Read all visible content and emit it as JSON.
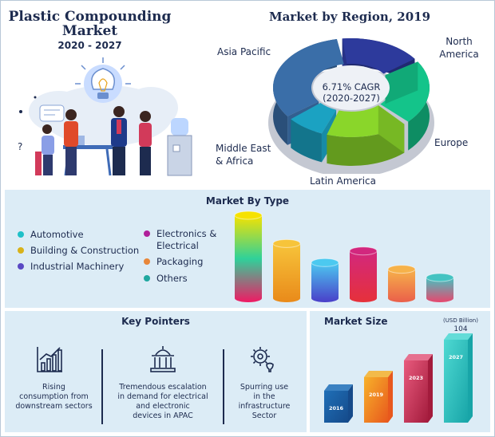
{
  "header": {
    "title_line1": "Plastic Compounding",
    "title_line2": "Market",
    "years": "2020 - 2027"
  },
  "region_chart": {
    "title": "Market by Region, 2019",
    "center_line1": "6.71% CAGR",
    "center_line2": "(2020-2027)",
    "labels": {
      "north_america": [
        "North",
        "America"
      ],
      "asia_pacific": "Asia Pacific",
      "europe": "Europe",
      "middle_east": [
        "Middle East",
        "& Africa"
      ],
      "latin_america": "Latin America"
    }
  },
  "type_chart": {
    "title": "Market By Type",
    "legend": [
      {
        "label": "Automotive",
        "color": "#1fc0c8"
      },
      {
        "label": "Building & Construction",
        "color": "#d8b21a"
      },
      {
        "label": "Industrial Machinery",
        "color": "#5a49c4"
      },
      {
        "label": "Electronics &",
        "label2": "Electrical",
        "color": "#b0209a"
      },
      {
        "label": "Packaging",
        "color": "#e8873a"
      },
      {
        "label": "Others",
        "color": "#1fa8a0"
      }
    ]
  },
  "key_pointers": {
    "title": "Key Pointers",
    "items": [
      {
        "icon": "growth-chart-icon",
        "lines": [
          "Rising",
          "consumption from",
          "downstream sectors"
        ]
      },
      {
        "icon": "government-building-icon",
        "lines": [
          "Tremendous escalation",
          "in demand for electrical",
          "and electronic",
          "devices in APAC"
        ]
      },
      {
        "icon": "gear-bulb-icon",
        "lines": [
          "Spurring use",
          "in the",
          "infrastructure",
          "Sector"
        ]
      }
    ]
  },
  "market_size": {
    "title": "Market Size",
    "unit": "(USD Billion)",
    "value_label": "104"
  },
  "chart_data": [
    {
      "type": "pie",
      "title": "Market by Region, 2019",
      "categories": [
        "North America",
        "Europe",
        "Latin America",
        "Middle East & Africa",
        "Asia Pacific"
      ],
      "values": [
        18,
        22,
        18,
        9,
        33
      ],
      "colors": [
        "#2d3a9c",
        "#14c48a",
        "#8ad62a",
        "#1ba2c2",
        "#3a6ea8"
      ]
    },
    {
      "type": "bar",
      "title": "Market By Type",
      "categories": [
        "Automotive",
        "Building & Construction",
        "Industrial Machinery",
        "Electronics & Electrical",
        "Packaging",
        "Others"
      ],
      "values": [
        100,
        66,
        43,
        57,
        35,
        25
      ],
      "colors": [
        [
          "#f6e200",
          "#2fd19a",
          "#f01a64"
        ],
        [
          "#f7c43a",
          "#e98a1a"
        ],
        [
          "#4cc9f0",
          "#4a3fc9"
        ],
        [
          "#d2277e",
          "#e6313a"
        ],
        [
          "#f6b24a",
          "#ea5f4a"
        ],
        [
          "#44c3c2",
          "#e7476e"
        ]
      ]
    },
    {
      "type": "bar",
      "title": "Market Size",
      "categories": [
        "2016",
        "2019",
        "2023",
        "2027"
      ],
      "values": [
        40,
        57,
        78,
        104
      ],
      "ylabel": "(USD Billion)",
      "colors": [
        [
          "#1f6fb7",
          "#154a8a"
        ],
        [
          "#f7b12a",
          "#e8581d"
        ],
        [
          "#e85a7d",
          "#a31b3c"
        ],
        [
          "#4ed9d2",
          "#18a5a8"
        ]
      ]
    }
  ]
}
